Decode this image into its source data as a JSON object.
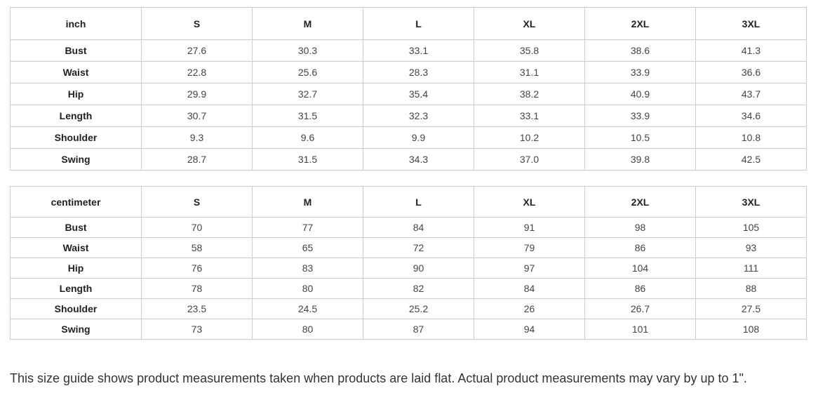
{
  "inch_table": {
    "header": [
      "inch",
      "S",
      "M",
      "L",
      "XL",
      "2XL",
      "3XL"
    ],
    "rows": [
      [
        "Bust",
        "27.6",
        "30.3",
        "33.1",
        "35.8",
        "38.6",
        "41.3"
      ],
      [
        "Waist",
        "22.8",
        "25.6",
        "28.3",
        "31.1",
        "33.9",
        "36.6"
      ],
      [
        "Hip",
        "29.9",
        "32.7",
        "35.4",
        "38.2",
        "40.9",
        "43.7"
      ],
      [
        "Length",
        "30.7",
        "31.5",
        "32.3",
        "33.1",
        "33.9",
        "34.6"
      ],
      [
        "Shoulder",
        "9.3",
        "9.6",
        "9.9",
        "10.2",
        "10.5",
        "10.8"
      ],
      [
        "Swing",
        "28.7",
        "31.5",
        "34.3",
        "37.0",
        "39.8",
        "42.5"
      ]
    ]
  },
  "cm_table": {
    "header": [
      "centimeter",
      "S",
      "M",
      "L",
      "XL",
      "2XL",
      "3XL"
    ],
    "rows": [
      [
        "Bust",
        "70",
        "77",
        "84",
        "91",
        "98",
        "105"
      ],
      [
        "Waist",
        "58",
        "65",
        "72",
        "79",
        "86",
        "93"
      ],
      [
        "Hip",
        "76",
        "83",
        "90",
        "97",
        "104",
        "111"
      ],
      [
        "Length",
        "78",
        "80",
        "82",
        "84",
        "86",
        "88"
      ],
      [
        "Shoulder",
        "23.5",
        "24.5",
        "25.2",
        "26",
        "26.7",
        "27.5"
      ],
      [
        "Swing",
        "73",
        "80",
        "87",
        "94",
        "101",
        "108"
      ]
    ]
  },
  "note": "This size guide shows product measurements taken when products are laid flat. Actual product measurements may vary by up to 1\"."
}
